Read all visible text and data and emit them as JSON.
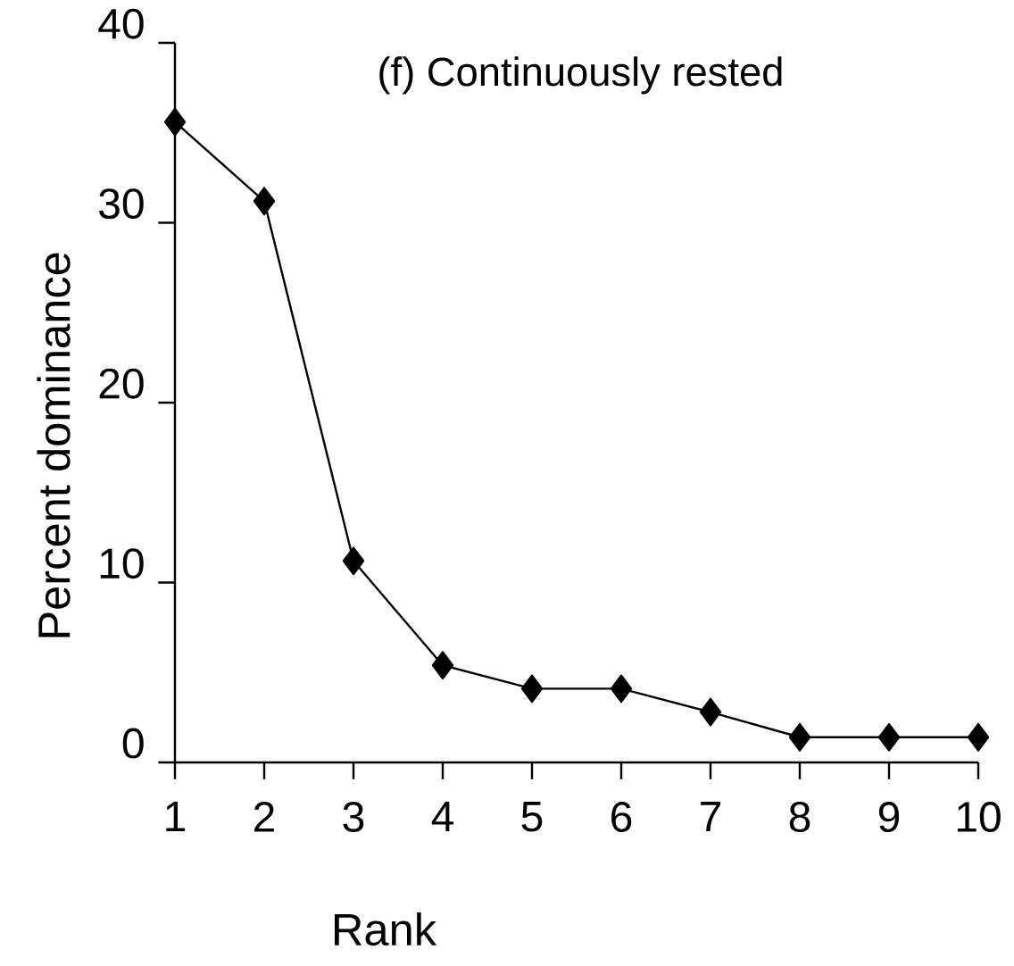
{
  "chart_data": {
    "type": "line",
    "title": "(f) Continuously rested",
    "xlabel": "Rank",
    "ylabel": "Percent dominance",
    "x": [
      1,
      2,
      3,
      4,
      5,
      6,
      7,
      8,
      9,
      10
    ],
    "series": [
      {
        "color": "#000000",
        "values": [
          35.6,
          31.2,
          11.2,
          5.4,
          4.1,
          4.1,
          2.8,
          1.4,
          1.4,
          1.4
        ]
      }
    ],
    "xlim": [
      1,
      10
    ],
    "xticks": [
      1,
      2,
      3,
      4,
      5,
      6,
      7,
      8,
      9,
      10
    ],
    "ylim": [
      0,
      40
    ],
    "yticks": [
      0,
      10,
      20,
      30,
      40
    ],
    "marker": "diamond",
    "line_style": "solid"
  }
}
